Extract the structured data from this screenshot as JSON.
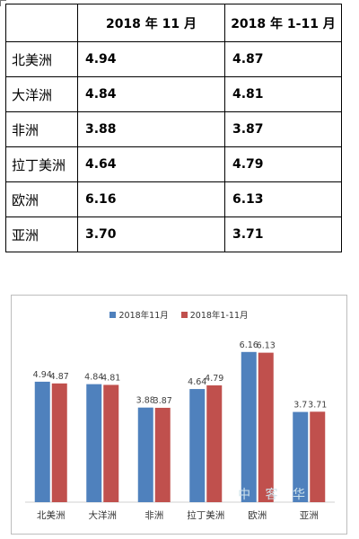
{
  "table": {
    "headers": [
      "",
      "2018 年 11 月",
      "2018 年 1-11 月"
    ],
    "rows": [
      {
        "region": "北美洲",
        "nov": "4.94",
        "ytd": "4.87"
      },
      {
        "region": "大洋洲",
        "nov": "4.84",
        "ytd": "4.81"
      },
      {
        "region": "非洲",
        "nov": "3.88",
        "ytd": "3.87"
      },
      {
        "region": "拉丁美洲",
        "nov": "4.64",
        "ytd": "4.79"
      },
      {
        "region": "欧洲",
        "nov": "6.16",
        "ytd": "6.13"
      },
      {
        "region": "亚洲",
        "nov": "3.70",
        "ytd": "3.71"
      }
    ]
  },
  "chart_data": {
    "type": "bar",
    "categories": [
      "北美洲",
      "大洋洲",
      "非洲",
      "拉丁美洲",
      "欧洲",
      "亚洲"
    ],
    "series": [
      {
        "name": "2018年11月",
        "values": [
          4.94,
          4.84,
          3.88,
          4.64,
          6.16,
          3.7
        ],
        "labels": [
          "4.94",
          "4.84",
          "3.88",
          "4.64",
          "6.16",
          "3.7"
        ],
        "color": "#4f81bd"
      },
      {
        "name": "2018年1-11月",
        "values": [
          4.87,
          4.81,
          3.87,
          4.79,
          6.13,
          3.71
        ],
        "labels": [
          "4.87",
          "4.81",
          "3.87",
          "4.79",
          "6.13",
          "3.71"
        ],
        "color": "#c0504d"
      }
    ],
    "title": "",
    "xlabel": "",
    "ylabel": "",
    "ylim": [
      0,
      7
    ],
    "grid": false,
    "legend_position": "top-center"
  },
  "watermark": {
    "text": "中 客 华"
  }
}
